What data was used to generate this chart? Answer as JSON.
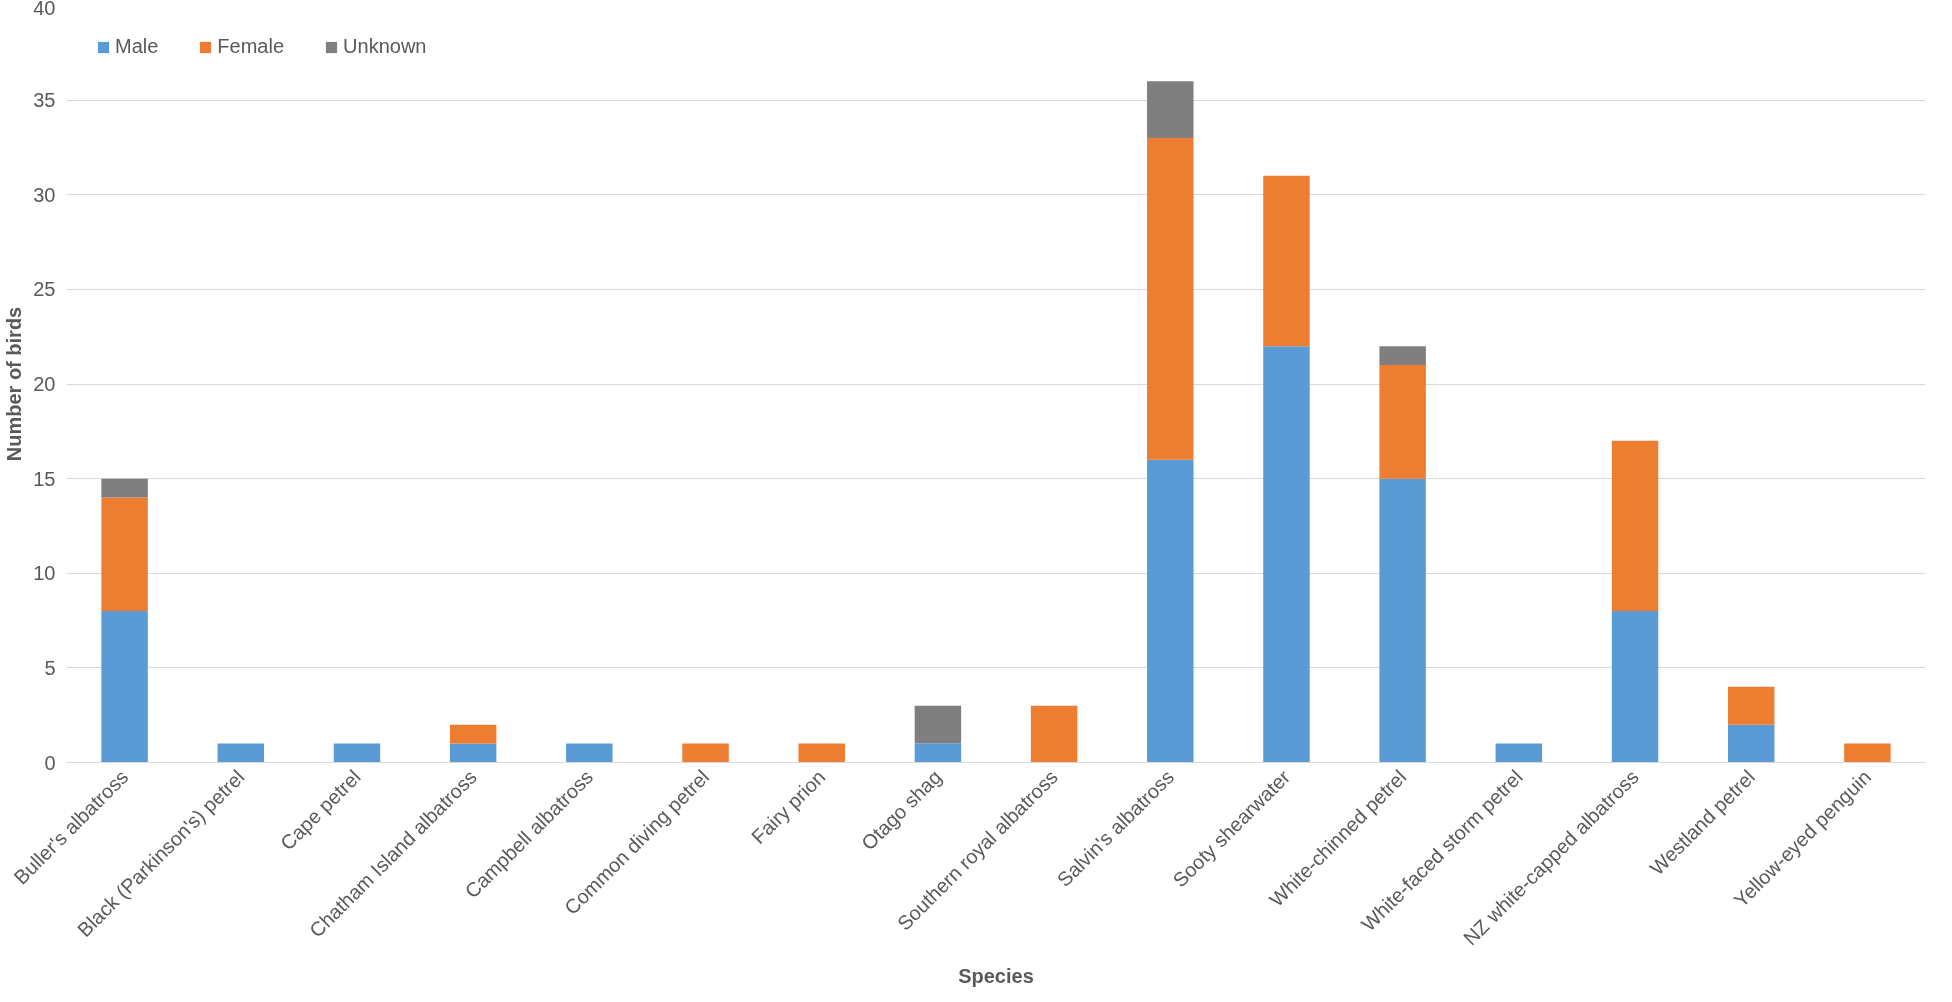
{
  "chart_data": {
    "type": "bar",
    "stacked": true,
    "xlabel": "Species",
    "ylabel": "Number of birds",
    "categories": [
      "Buller's albatross",
      "Black (Parkinson's) petrel",
      "Cape petrel",
      "Chatham Island albatross",
      "Campbell albatross",
      "Common diving petrel",
      "Fairy prion",
      "Otago shag",
      "Southern royal albatross",
      "Salvin's albatross",
      "Sooty shearwater",
      "White-chinned petrel",
      "White-faced storm petrel",
      "NZ white-capped albatross",
      "Westland petrel",
      "Yellow-eyed penguin"
    ],
    "series": [
      {
        "name": "Male",
        "color": "#5b9bd5",
        "values": [
          8,
          1,
          1,
          1,
          1,
          0,
          0,
          1,
          0,
          16,
          22,
          15,
          1,
          8,
          2,
          0
        ]
      },
      {
        "name": "Female",
        "color": "#ed7d31",
        "values": [
          6,
          0,
          0,
          1,
          0,
          1,
          1,
          0,
          3,
          17,
          9,
          6,
          0,
          9,
          2,
          1
        ]
      },
      {
        "name": "Unknown",
        "color": "#7f7f7f",
        "values": [
          1,
          0,
          0,
          0,
          0,
          0,
          0,
          2,
          0,
          3,
          0,
          1,
          0,
          0,
          0,
          0
        ]
      }
    ],
    "ylim": [
      0,
      40
    ],
    "yticks": [
      0,
      5,
      10,
      15,
      20,
      25,
      30,
      35,
      40
    ],
    "grid": "y",
    "legend": "top left"
  }
}
